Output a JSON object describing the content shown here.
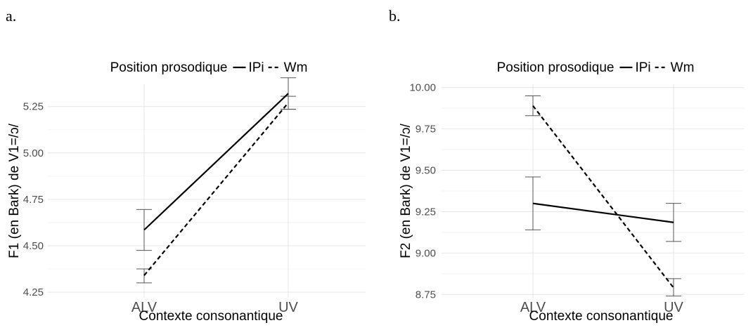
{
  "chart_data": [
    {
      "panel": "a.",
      "type": "line",
      "legend_title": "Position prosodique",
      "legend_placement": "top",
      "xlabel": "Contexte consonantique",
      "ylabel": "F1 (en Bark) de V1=/ɔ/",
      "categories": [
        "ALV",
        "UV"
      ],
      "ylim": [
        4.22,
        5.37
      ],
      "yticks": [
        4.25,
        4.5,
        4.75,
        5.0,
        5.25
      ],
      "ytick_labels": [
        "4.25",
        "4.50",
        "4.75",
        "5.00",
        "5.25"
      ],
      "grid": true,
      "series": [
        {
          "name": "IPi",
          "linestyle": "solid",
          "values": [
            4.585,
            5.32
          ],
          "err_low": [
            4.475,
            5.235
          ],
          "err_high": [
            4.695,
            5.405
          ]
        },
        {
          "name": "Wm",
          "linestyle": "dashed",
          "values": [
            4.34,
            5.27
          ],
          "err_low": [
            4.3,
            5.235
          ],
          "err_high": [
            4.375,
            5.305
          ]
        }
      ]
    },
    {
      "panel": "b.",
      "type": "line",
      "legend_title": "Position prosodique",
      "legend_placement": "top",
      "xlabel": "Contexte consonantique",
      "ylabel": "F2 (en Bark) de V1=/ɔ/",
      "categories": [
        "ALV",
        "UV"
      ],
      "ylim": [
        8.73,
        10.02
      ],
      "yticks": [
        8.75,
        9.0,
        9.25,
        9.5,
        9.75,
        10.0
      ],
      "ytick_labels": [
        "8.75",
        "9.00",
        "9.25",
        "9.50",
        "9.75",
        "10.00"
      ],
      "grid": true,
      "series": [
        {
          "name": "IPi",
          "linestyle": "solid",
          "values": [
            9.3,
            9.185
          ],
          "err_low": [
            9.14,
            9.07
          ],
          "err_high": [
            9.46,
            9.3
          ]
        },
        {
          "name": "Wm",
          "linestyle": "dashed",
          "values": [
            9.89,
            8.79
          ],
          "err_low": [
            9.83,
            8.74
          ],
          "err_high": [
            9.95,
            8.845
          ]
        }
      ]
    }
  ]
}
